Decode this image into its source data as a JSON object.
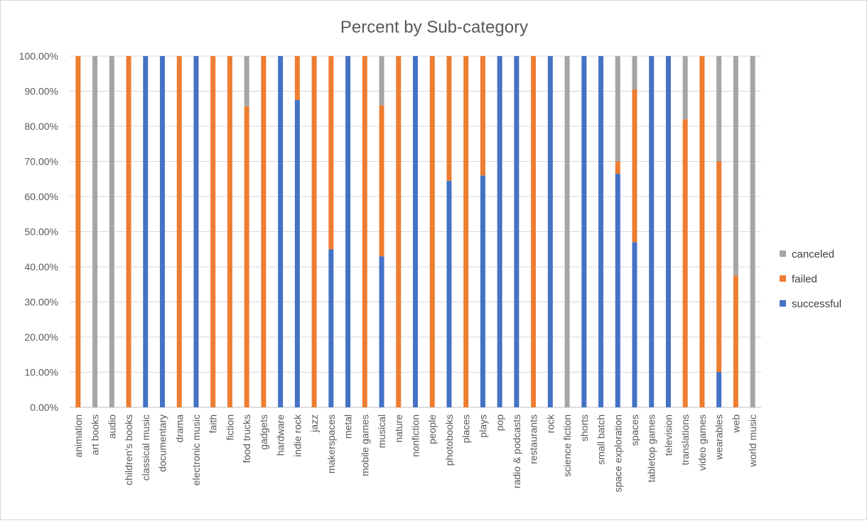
{
  "chart_data": {
    "type": "bar",
    "stacked": true,
    "title": "Percent by Sub-category",
    "xlabel": "",
    "ylabel": "",
    "ylim": [
      0,
      1
    ],
    "y_ticks": [
      "0.00%",
      "10.00%",
      "20.00%",
      "30.00%",
      "40.00%",
      "50.00%",
      "60.00%",
      "70.00%",
      "80.00%",
      "90.00%",
      "100.00%"
    ],
    "grid": true,
    "legend_position": "right",
    "categories": [
      "animation",
      "art books",
      "audio",
      "children's books",
      "classical music",
      "documentary",
      "drama",
      "electronic music",
      "faith",
      "fiction",
      "food trucks",
      "gadgets",
      "hardware",
      "indie rock",
      "jazz",
      "makerspaces",
      "metal",
      "mobile games",
      "musical",
      "nature",
      "nonfiction",
      "people",
      "photobooks",
      "places",
      "plays",
      "pop",
      "radio & podcasts",
      "restaurants",
      "rock",
      "science fiction",
      "shorts",
      "small batch",
      "space exploration",
      "spaces",
      "tabletop games",
      "television",
      "translations",
      "video games",
      "wearables",
      "web",
      "world music"
    ],
    "series": [
      {
        "name": "successful",
        "color": "#4472c4",
        "values": [
          0,
          0,
          0,
          0,
          1,
          1,
          0,
          1,
          0,
          0,
          0,
          0,
          1,
          0.875,
          0,
          0.45,
          1,
          0,
          0.43,
          0,
          1,
          0,
          0.645,
          0,
          0.66,
          1,
          1,
          0,
          1,
          0,
          1,
          1,
          0.665,
          0.47,
          1,
          1,
          0,
          0,
          0.1,
          0,
          0
        ]
      },
      {
        "name": "failed",
        "color": "#ed7d31",
        "values": [
          1,
          0,
          0,
          1,
          0,
          0,
          1,
          0,
          1,
          1,
          0.857,
          1,
          0,
          0.125,
          1,
          0.55,
          0,
          1,
          0.43,
          1,
          0,
          1,
          0.355,
          1,
          0.34,
          0,
          0,
          1,
          0,
          0,
          0,
          0,
          0.035,
          0.435,
          0,
          0,
          0.82,
          1,
          0.6,
          0.375,
          0
        ]
      },
      {
        "name": "canceled",
        "color": "#a5a5a5",
        "values": [
          0,
          1,
          1,
          0,
          0,
          0,
          0,
          0,
          0,
          0,
          0.143,
          0,
          0,
          0,
          0,
          0,
          0,
          0,
          0.14,
          0,
          0,
          0,
          0,
          0,
          0,
          0,
          0,
          0,
          0,
          1,
          0,
          0,
          0.3,
          0.095,
          0,
          0,
          0.18,
          0,
          0.3,
          0.625,
          1
        ]
      }
    ],
    "legend": [
      {
        "name": "canceled",
        "color": "#a5a5a5"
      },
      {
        "name": "failed",
        "color": "#ed7d31"
      },
      {
        "name": "successful",
        "color": "#4472c4"
      }
    ]
  }
}
